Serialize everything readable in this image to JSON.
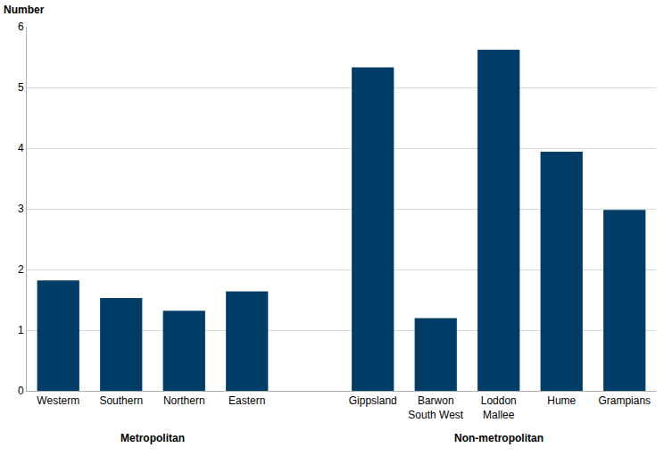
{
  "chart_data": {
    "type": "bar",
    "y_label": "Number",
    "categories": [
      "Westerm",
      "Southern",
      "Northern",
      "Eastern",
      null,
      "Gippsland",
      "Barwon South West",
      "Loddon Mallee",
      "Hume",
      "Grampians"
    ],
    "values": [
      1.82,
      1.53,
      1.32,
      1.64,
      null,
      5.33,
      1.2,
      5.62,
      3.94,
      2.98
    ],
    "annotations": [
      "Metropolitan",
      "Non-metropolitan"
    ],
    "color": "#003d66",
    "ylim": [
      0,
      6
    ],
    "yticks": [
      0,
      1,
      2,
      3,
      4,
      5,
      6
    ],
    "grid": true
  }
}
